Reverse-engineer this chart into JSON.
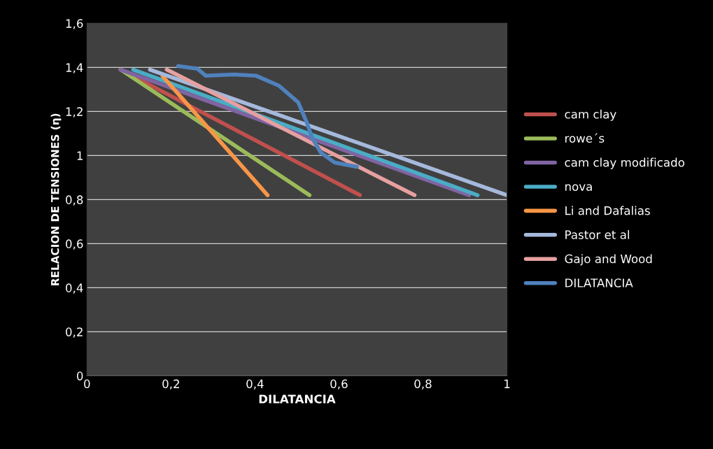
{
  "chart_data": {
    "type": "line",
    "xlabel": "DILATANCIA",
    "ylabel": "RELACION DE TENSIONES (η)",
    "xlim": [
      0,
      1
    ],
    "ylim": [
      0,
      1.6
    ],
    "xticks": [
      0,
      {
        "value": 0.2,
        "label": "0,2"
      },
      {
        "value": 0.4,
        "label": "0,4"
      },
      {
        "value": 0.6,
        "label": "0,6"
      },
      {
        "value": 0.8,
        "label": "0,8"
      },
      1
    ],
    "yticks": [
      0,
      {
        "value": 0.2,
        "label": "0,2"
      },
      {
        "value": 0.4,
        "label": "0,4"
      },
      {
        "value": 0.6,
        "label": "0,6"
      },
      {
        "value": 0.8,
        "label": "0,8"
      },
      1,
      {
        "value": 1.2,
        "label": "1,2"
      },
      {
        "value": 1.4,
        "label": "1,4"
      },
      {
        "value": 1.6,
        "label": "1,6"
      }
    ],
    "grid": "y",
    "legend": "right",
    "marker": "none",
    "line_style": "solid",
    "series": [
      {
        "name": "cam clay",
        "color": "#c0504d",
        "x": [
          0.08,
          0.65
        ],
        "values": [
          1.39,
          0.82
        ]
      },
      {
        "name": "rowe´s",
        "color": "#9bbb59",
        "x": [
          0.08,
          0.53
        ],
        "values": [
          1.39,
          0.82
        ]
      },
      {
        "name": "cam clay modificado",
        "color": "#8064a2",
        "x": [
          0.08,
          0.91
        ],
        "values": [
          1.39,
          0.82
        ]
      },
      {
        "name": "nova",
        "color": "#4bacc6",
        "x": [
          0.11,
          0.93
        ],
        "values": [
          1.39,
          0.82
        ]
      },
      {
        "name": "Li and Dafalias",
        "color": "#f79646",
        "x": [
          0.18,
          0.43
        ],
        "values": [
          1.36,
          0.82
        ]
      },
      {
        "name": "Pastor et al",
        "color": "#a5b9dc",
        "x": [
          0.15,
          1.0
        ],
        "values": [
          1.39,
          0.82
        ]
      },
      {
        "name": "Gajo and Wood",
        "color": "#e6a0a0",
        "x": [
          0.19,
          0.78
        ],
        "values": [
          1.39,
          0.82
        ]
      },
      {
        "name": "DILATANCIA",
        "color": "#4f81bd",
        "x": [
          0.217,
          0.263,
          0.283,
          0.35,
          0.403,
          0.457,
          0.503,
          0.523,
          0.537,
          0.557,
          0.59,
          0.643
        ],
        "values": [
          1.406,
          1.394,
          1.362,
          1.368,
          1.362,
          1.317,
          1.241,
          1.152,
          1.076,
          1.013,
          0.968,
          0.949
        ]
      }
    ]
  }
}
